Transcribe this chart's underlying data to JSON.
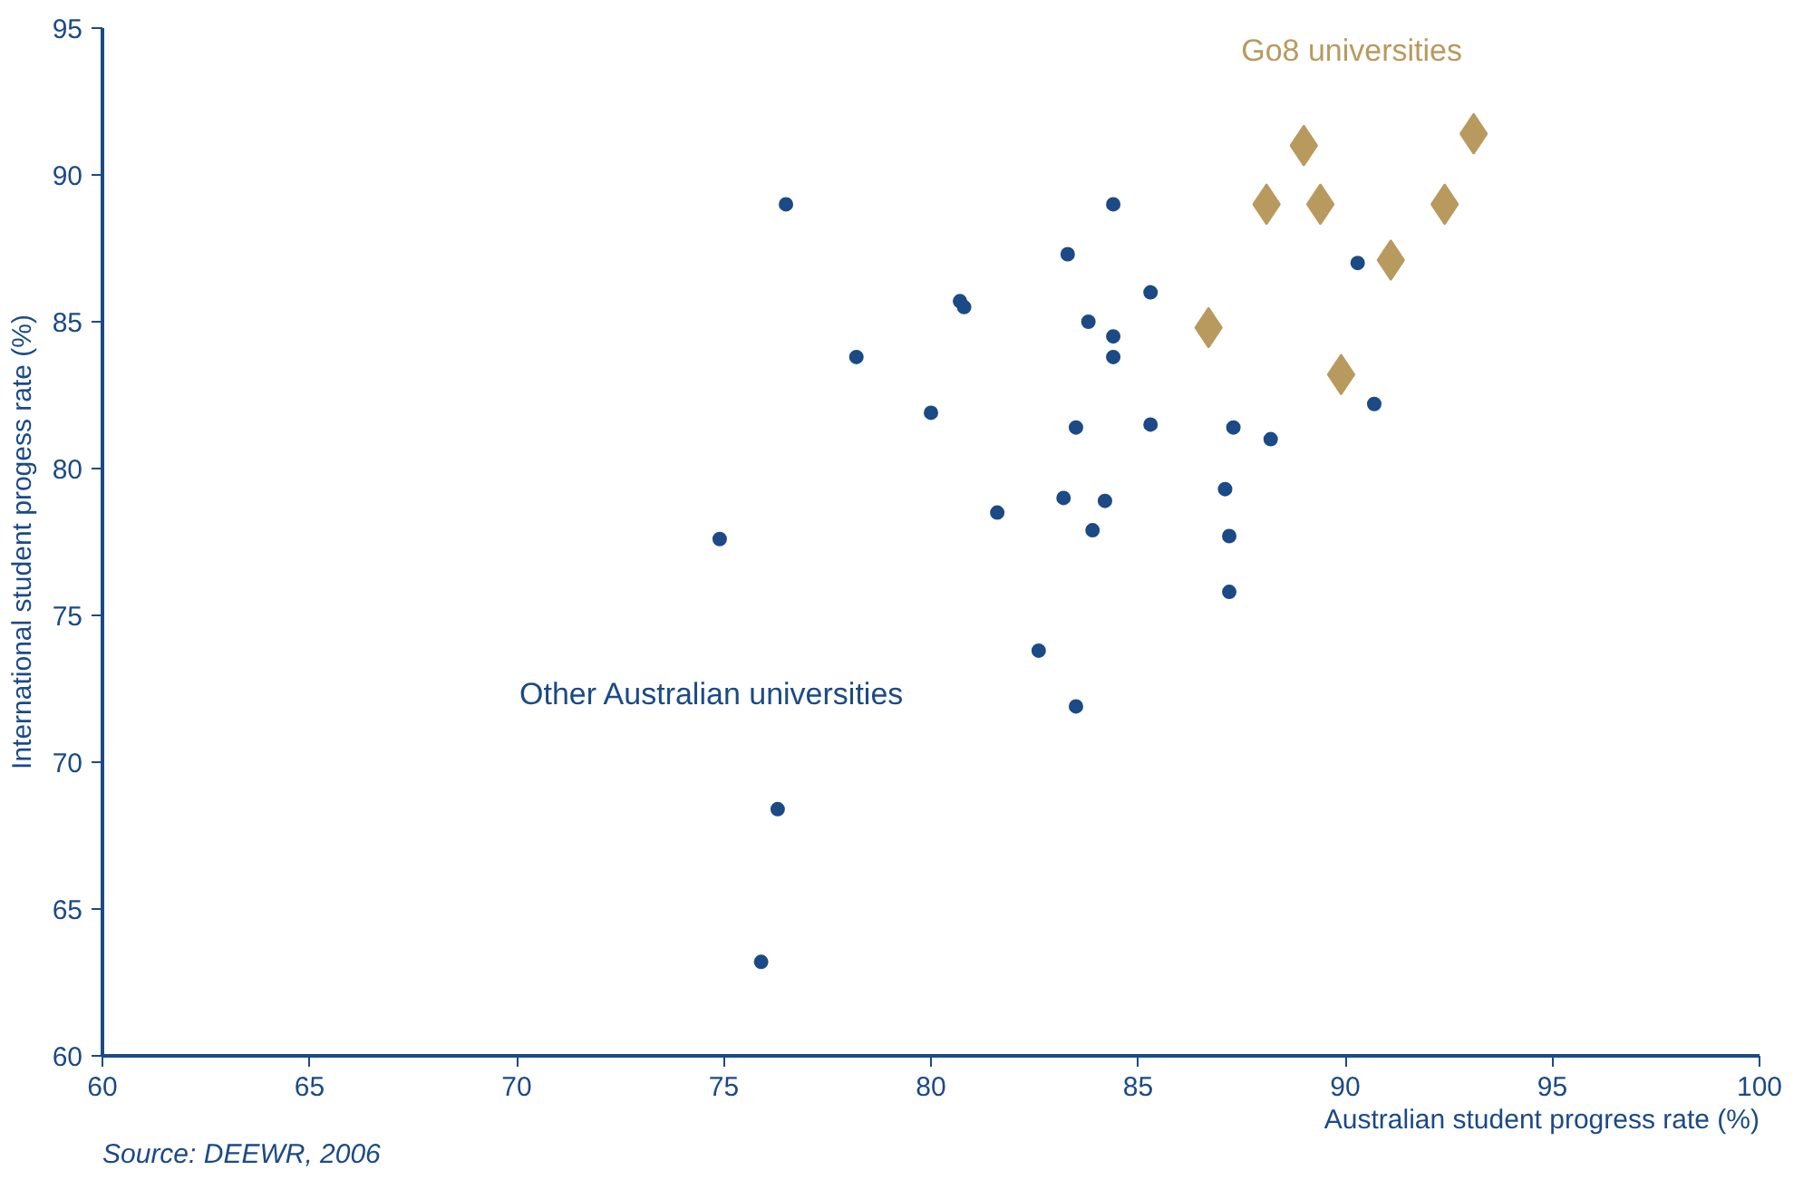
{
  "chart_data": {
    "type": "scatter",
    "xlabel": "Australian student progress rate (%)",
    "ylabel": "International student progess rate (%)",
    "xlim": [
      60,
      100
    ],
    "xticks": [
      60,
      65,
      70,
      75,
      80,
      85,
      90,
      95,
      100
    ],
    "ylim": [
      60,
      95
    ],
    "yticks": [
      60,
      65,
      70,
      75,
      80,
      85,
      90,
      95
    ],
    "grid": false,
    "legend": false,
    "annotations": [
      "Source: DEEWR, 2006"
    ],
    "series": [
      {
        "name": "Other Australian universities",
        "color": "#1b4a86",
        "marker": "circle",
        "x": [
          76.5,
          84.4,
          83.3,
          85.3,
          80.7,
          80.8,
          83.8,
          84.4,
          78.2,
          84.4,
          90.3,
          90.7,
          80.0,
          83.5,
          85.3,
          87.3,
          88.2,
          83.2,
          84.2,
          87.1,
          81.6,
          83.9,
          87.2,
          74.9,
          87.2,
          82.6,
          83.5,
          76.3,
          75.9
        ],
        "values": [
          89.0,
          89.0,
          87.3,
          86.0,
          85.7,
          85.5,
          85.0,
          84.5,
          83.8,
          83.8,
          87.0,
          82.2,
          81.9,
          81.4,
          81.5,
          81.4,
          81.0,
          79.0,
          78.9,
          79.3,
          78.5,
          77.9,
          77.7,
          77.6,
          75.8,
          73.8,
          71.9,
          68.4,
          63.2
        ]
      },
      {
        "name": "Go8 universities",
        "color": "#b89a5e",
        "marker": "diamond",
        "x": [
          89.0,
          88.1,
          89.4,
          93.1,
          92.4,
          91.1,
          86.7,
          89.9
        ],
        "values": [
          91.0,
          89.0,
          89.0,
          91.4,
          89.0,
          87.1,
          84.8,
          83.2
        ]
      }
    ]
  }
}
